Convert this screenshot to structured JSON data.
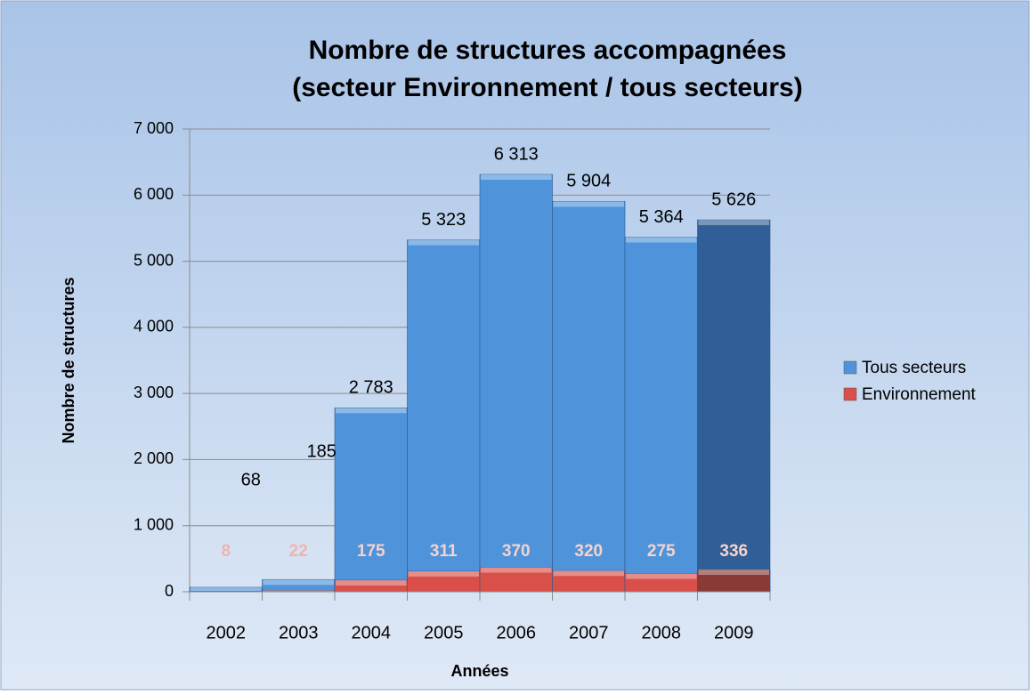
{
  "chart_data": {
    "type": "bar",
    "title": [
      "Nombre de structures accompagnées",
      "(secteur Environnement / tous secteurs)"
    ],
    "x_label": "Années",
    "y_label": "Nombre de structures",
    "categories": [
      "2002",
      "2003",
      "2004",
      "2005",
      "2006",
      "2007",
      "2008",
      "2009"
    ],
    "overlap": true,
    "series": [
      {
        "name": "Tous secteurs",
        "color": "#4f94da",
        "colors": [
          "#4f94da",
          "#4f94da",
          "#4f94da",
          "#4f94da",
          "#4f94da",
          "#4f94da",
          "#4f94da",
          "#2f5f96"
        ],
        "values": [
          68,
          185,
          2783,
          5323,
          6313,
          5904,
          5364,
          5626
        ],
        "value_labels": [
          "68",
          "185",
          "2 783",
          "5 323",
          "6 313",
          "5 904",
          "5 364",
          "5 626"
        ]
      },
      {
        "name": "Environnement",
        "color": "#d9504a",
        "colors": [
          "#d9504a",
          "#d9504a",
          "#d9504a",
          "#d9504a",
          "#d9504a",
          "#d9504a",
          "#d9504a",
          "#8a3a36"
        ],
        "values": [
          8,
          22,
          175,
          311,
          370,
          320,
          275,
          336
        ]
      }
    ],
    "ylim": [
      0,
      7000
    ],
    "yticks": [
      0,
      {
        "value": 1000,
        "label": "1 000"
      },
      {
        "value": 2000,
        "label": "2 000"
      },
      {
        "value": 3000,
        "label": "3 000"
      },
      {
        "value": 4000,
        "label": "4 000"
      },
      {
        "value": 5000,
        "label": "5 000"
      },
      {
        "value": 6000,
        "label": "6 000"
      },
      {
        "value": 7000,
        "label": "7 000"
      }
    ],
    "grid": true,
    "legend": "right"
  }
}
